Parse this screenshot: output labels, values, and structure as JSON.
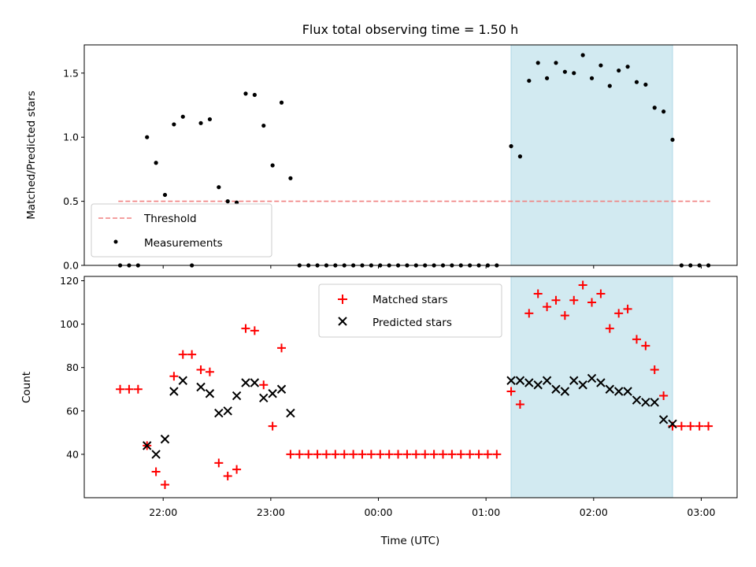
{
  "title": "Flux total observing time = 1.50 h",
  "chart_data": [
    {
      "type": "scatter",
      "panel": "top",
      "ylabel": "Matched/Predicted stars",
      "ylim": [
        0,
        1.72
      ],
      "yticks": [
        0.0,
        0.5,
        1.0,
        1.5
      ],
      "ytick_labels": [
        "0.0",
        "0.5",
        "1.0",
        "1.5"
      ],
      "threshold": {
        "name": "Threshold",
        "value": 0.5,
        "x_start": "21:35",
        "x_end": "03:05",
        "color": "#f08080"
      },
      "highlight": {
        "x_start": "01:14",
        "x_end": "02:44",
        "color": "#add8e6"
      },
      "legend_position": "lower left",
      "series": [
        {
          "name": "Measurements",
          "marker": "dot",
          "color": "#000000",
          "points": [
            [
              "21:36",
              0
            ],
            [
              "21:41",
              0
            ],
            [
              "21:46",
              0
            ],
            [
              "21:51",
              1.0
            ],
            [
              "21:56",
              0.8
            ],
            [
              "22:01",
              0.55
            ],
            [
              "22:06",
              1.1
            ],
            [
              "22:11",
              1.16
            ],
            [
              "22:16",
              0
            ],
            [
              "22:21",
              1.11
            ],
            [
              "22:26",
              1.14
            ],
            [
              "22:31",
              0.61
            ],
            [
              "22:36",
              0.5
            ],
            [
              "22:41",
              0.49
            ],
            [
              "22:46",
              1.34
            ],
            [
              "22:51",
              1.33
            ],
            [
              "22:56",
              1.09
            ],
            [
              "23:01",
              0.78
            ],
            [
              "23:06",
              1.27
            ],
            [
              "23:11",
              0.68
            ],
            [
              "23:16",
              0
            ],
            [
              "23:21",
              0
            ],
            [
              "23:26",
              0
            ],
            [
              "23:31",
              0
            ],
            [
              "23:36",
              0
            ],
            [
              "23:41",
              0
            ],
            [
              "23:46",
              0
            ],
            [
              "23:51",
              0
            ],
            [
              "23:56",
              0
            ],
            [
              "00:01",
              0
            ],
            [
              "00:06",
              0
            ],
            [
              "00:11",
              0
            ],
            [
              "00:16",
              0
            ],
            [
              "00:21",
              0
            ],
            [
              "00:26",
              0
            ],
            [
              "00:31",
              0
            ],
            [
              "00:36",
              0
            ],
            [
              "00:41",
              0
            ],
            [
              "00:46",
              0
            ],
            [
              "00:51",
              0
            ],
            [
              "00:56",
              0
            ],
            [
              "01:01",
              0
            ],
            [
              "01:06",
              0
            ],
            [
              "01:14",
              0.93
            ],
            [
              "01:19",
              0.85
            ],
            [
              "01:24",
              1.44
            ],
            [
              "01:29",
              1.58
            ],
            [
              "01:34",
              1.46
            ],
            [
              "01:39",
              1.58
            ],
            [
              "01:44",
              1.51
            ],
            [
              "01:49",
              1.5
            ],
            [
              "01:54",
              1.64
            ],
            [
              "01:59",
              1.46
            ],
            [
              "02:04",
              1.56
            ],
            [
              "02:09",
              1.4
            ],
            [
              "02:14",
              1.52
            ],
            [
              "02:19",
              1.55
            ],
            [
              "02:24",
              1.43
            ],
            [
              "02:29",
              1.41
            ],
            [
              "02:34",
              1.23
            ],
            [
              "02:39",
              1.2
            ],
            [
              "02:44",
              0.98
            ],
            [
              "02:49",
              0
            ],
            [
              "02:54",
              0
            ],
            [
              "02:59",
              0
            ],
            [
              "03:04",
              0
            ]
          ]
        }
      ]
    },
    {
      "type": "scatter",
      "panel": "bottom",
      "xlabel": "Time (UTC)",
      "ylabel": "Count",
      "ylim": [
        20,
        122
      ],
      "yticks": [
        40,
        60,
        80,
        100,
        120
      ],
      "ytick_labels": [
        "40",
        "60",
        "80",
        "100",
        "120"
      ],
      "xlim": [
        "21:16",
        "03:20"
      ],
      "xticks": [
        "22:00",
        "23:00",
        "00:00",
        "01:00",
        "02:00",
        "03:00"
      ],
      "highlight": {
        "x_start": "01:14",
        "x_end": "02:44",
        "color": "#add8e6"
      },
      "legend_position": "upper center",
      "series": [
        {
          "name": "Matched stars",
          "marker": "plus",
          "color": "#ff0000",
          "points": [
            [
              "21:36",
              70
            ],
            [
              "21:41",
              70
            ],
            [
              "21:46",
              70
            ],
            [
              "21:51",
              44
            ],
            [
              "21:56",
              32
            ],
            [
              "22:01",
              26
            ],
            [
              "22:06",
              76
            ],
            [
              "22:11",
              86
            ],
            [
              "22:16",
              86
            ],
            [
              "22:21",
              79
            ],
            [
              "22:26",
              78
            ],
            [
              "22:31",
              36
            ],
            [
              "22:36",
              30
            ],
            [
              "22:41",
              33
            ],
            [
              "22:46",
              98
            ],
            [
              "22:51",
              97
            ],
            [
              "22:56",
              72
            ],
            [
              "23:01",
              53
            ],
            [
              "23:06",
              89
            ],
            [
              "23:11",
              40
            ],
            [
              "23:16",
              40
            ],
            [
              "23:21",
              40
            ],
            [
              "23:26",
              40
            ],
            [
              "23:31",
              40
            ],
            [
              "23:36",
              40
            ],
            [
              "23:41",
              40
            ],
            [
              "23:46",
              40
            ],
            [
              "23:51",
              40
            ],
            [
              "23:56",
              40
            ],
            [
              "00:01",
              40
            ],
            [
              "00:06",
              40
            ],
            [
              "00:11",
              40
            ],
            [
              "00:16",
              40
            ],
            [
              "00:21",
              40
            ],
            [
              "00:26",
              40
            ],
            [
              "00:31",
              40
            ],
            [
              "00:36",
              40
            ],
            [
              "00:41",
              40
            ],
            [
              "00:46",
              40
            ],
            [
              "00:51",
              40
            ],
            [
              "00:56",
              40
            ],
            [
              "01:01",
              40
            ],
            [
              "01:06",
              40
            ],
            [
              "01:14",
              69
            ],
            [
              "01:19",
              63
            ],
            [
              "01:24",
              105
            ],
            [
              "01:29",
              114
            ],
            [
              "01:34",
              108
            ],
            [
              "01:39",
              111
            ],
            [
              "01:44",
              104
            ],
            [
              "01:49",
              111
            ],
            [
              "01:54",
              118
            ],
            [
              "01:59",
              110
            ],
            [
              "02:04",
              114
            ],
            [
              "02:09",
              98
            ],
            [
              "02:14",
              105
            ],
            [
              "02:19",
              107
            ],
            [
              "02:24",
              93
            ],
            [
              "02:29",
              90
            ],
            [
              "02:34",
              79
            ],
            [
              "02:39",
              67
            ],
            [
              "02:44",
              53
            ],
            [
              "02:49",
              53
            ],
            [
              "02:54",
              53
            ],
            [
              "02:59",
              53
            ],
            [
              "03:04",
              53
            ]
          ]
        },
        {
          "name": "Predicted stars",
          "marker": "x",
          "color": "#000000",
          "points": [
            [
              "21:51",
              44
            ],
            [
              "21:56",
              40
            ],
            [
              "22:01",
              47
            ],
            [
              "22:06",
              69
            ],
            [
              "22:11",
              74
            ],
            [
              "22:21",
              71
            ],
            [
              "22:26",
              68
            ],
            [
              "22:31",
              59
            ],
            [
              "22:36",
              60
            ],
            [
              "22:41",
              67
            ],
            [
              "22:46",
              73
            ],
            [
              "22:51",
              73
            ],
            [
              "22:56",
              66
            ],
            [
              "23:01",
              68
            ],
            [
              "23:06",
              70
            ],
            [
              "23:11",
              59
            ],
            [
              "01:14",
              74
            ],
            [
              "01:19",
              74
            ],
            [
              "01:24",
              73
            ],
            [
              "01:29",
              72
            ],
            [
              "01:34",
              74
            ],
            [
              "01:39",
              70
            ],
            [
              "01:44",
              69
            ],
            [
              "01:49",
              74
            ],
            [
              "01:54",
              72
            ],
            [
              "01:59",
              75
            ],
            [
              "02:04",
              73
            ],
            [
              "02:09",
              70
            ],
            [
              "02:14",
              69
            ],
            [
              "02:19",
              69
            ],
            [
              "02:24",
              65
            ],
            [
              "02:29",
              64
            ],
            [
              "02:34",
              64
            ],
            [
              "02:39",
              56
            ],
            [
              "02:44",
              54
            ]
          ]
        }
      ]
    }
  ]
}
